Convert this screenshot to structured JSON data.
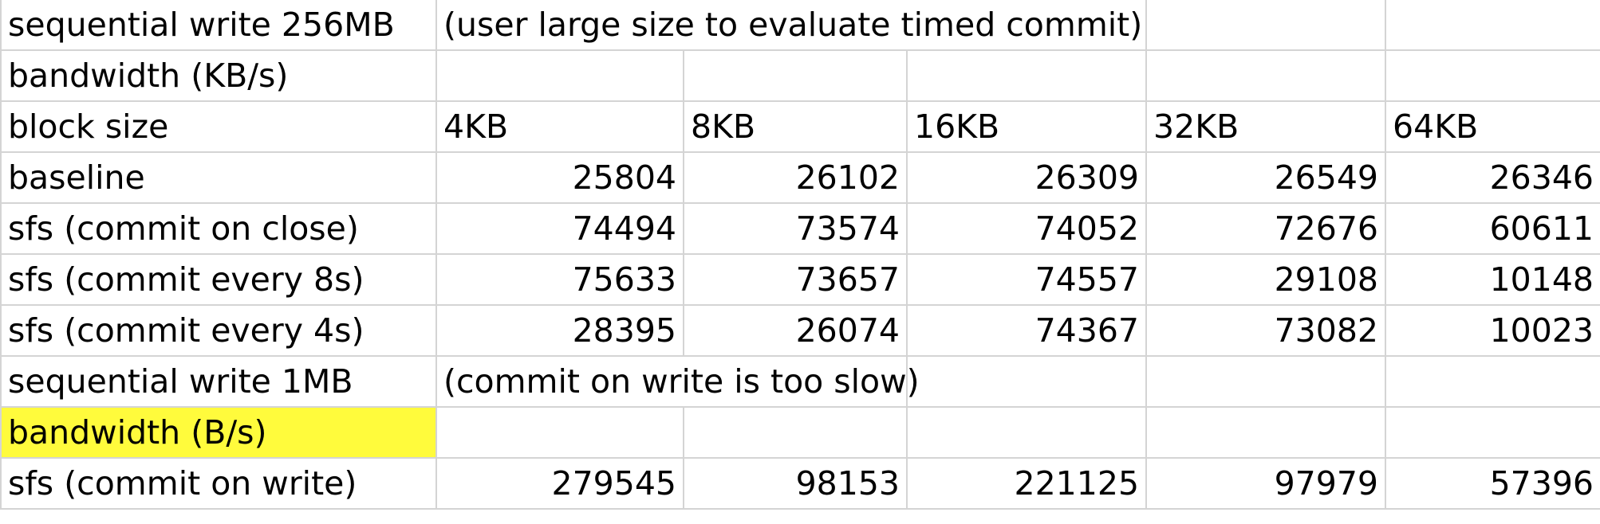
{
  "sheet": {
    "highlight_color": "#fffb3c",
    "rows": [
      {
        "cells": [
          "sequential write 256MB",
          "(user large size to evaluate timed commit)",
          "",
          "",
          "",
          ""
        ],
        "spans": [
          1,
          3,
          0,
          0,
          1,
          1
        ]
      },
      {
        "cells": [
          "bandwidth (KB/s)",
          "",
          "",
          "",
          "",
          ""
        ]
      },
      {
        "cells": [
          "block size",
          "4KB",
          "8KB",
          "16KB",
          "32KB",
          "64KB"
        ]
      },
      {
        "cells": [
          "baseline",
          "25804",
          "26102",
          "26309",
          "26549",
          "26346"
        ],
        "numeric": true
      },
      {
        "cells": [
          "sfs (commit on close)",
          "74494",
          "73574",
          "74052",
          "72676",
          "60611"
        ],
        "numeric": true
      },
      {
        "cells": [
          "sfs (commit every 8s)",
          "75633",
          "73657",
          "74557",
          "29108",
          "10148"
        ],
        "numeric": true
      },
      {
        "cells": [
          "sfs (commit every 4s)",
          "28395",
          "26074",
          "74367",
          "73082",
          "10023"
        ],
        "numeric": true
      },
      {
        "cells": [
          "sequential write 1MB",
          "(commit on write is too slow)",
          "",
          "",
          "",
          ""
        ],
        "spans": [
          1,
          2,
          0,
          1,
          1,
          1
        ]
      },
      {
        "cells": [
          "bandwidth (B/s)",
          "",
          "",
          "",
          "",
          ""
        ],
        "highlight_first": true
      },
      {
        "cells": [
          "sfs (commit on write)",
          "279545",
          "98153",
          "221125",
          "97979",
          "57396"
        ],
        "numeric": true
      }
    ]
  }
}
